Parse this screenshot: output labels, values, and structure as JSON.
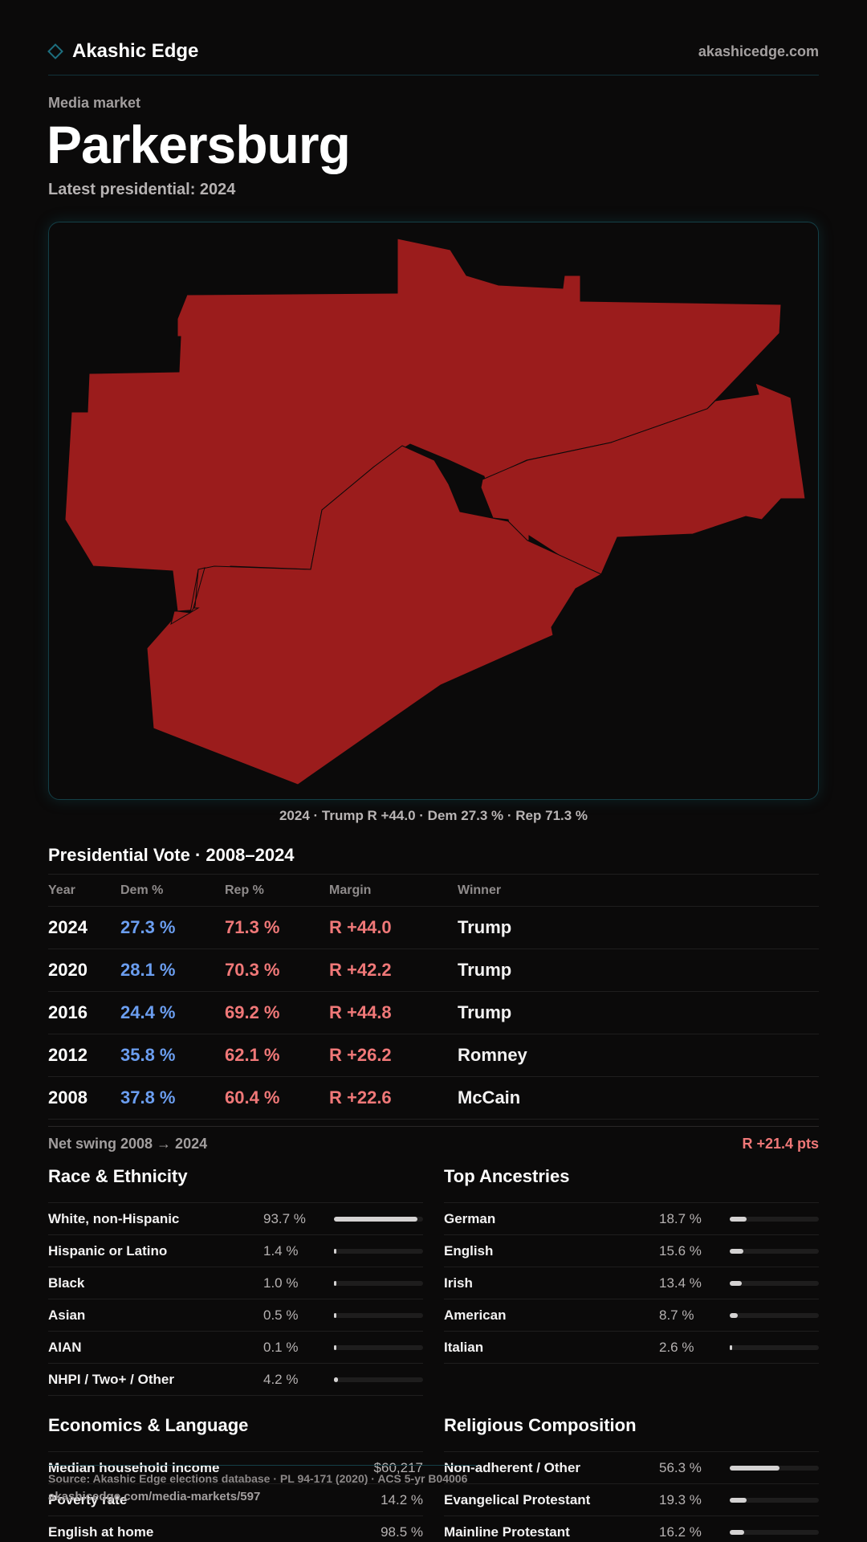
{
  "brand": {
    "name": "Akashic Edge",
    "site": "akashicedge.com"
  },
  "header": {
    "eyebrow": "Media market",
    "title": "Parkersburg",
    "subtitle": "Latest presidential: 2024"
  },
  "map": {
    "fill_color": "#9b1c1c",
    "caption": "2024 · Trump R +44.0 · Dem 27.3 % · Rep 71.3 %"
  },
  "presidential": {
    "heading": "Presidential Vote · 2008–2024",
    "columns": [
      "Year",
      "Dem %",
      "Rep %",
      "Margin",
      "Winner"
    ],
    "rows": [
      {
        "year": "2024",
        "dem": "27.3 %",
        "rep": "71.3 %",
        "margin": "R +44.0",
        "winner": "Trump"
      },
      {
        "year": "2020",
        "dem": "28.1 %",
        "rep": "70.3 %",
        "margin": "R +42.2",
        "winner": "Trump"
      },
      {
        "year": "2016",
        "dem": "24.4 %",
        "rep": "69.2 %",
        "margin": "R +44.8",
        "winner": "Trump"
      },
      {
        "year": "2012",
        "dem": "35.8 %",
        "rep": "62.1 %",
        "margin": "R +26.2",
        "winner": "Romney"
      },
      {
        "year": "2008",
        "dem": "37.8 %",
        "rep": "60.4 %",
        "margin": "R +22.6",
        "winner": "McCain"
      }
    ],
    "swing_label": "Net swing 2008 → 2024",
    "swing_value": "R +21.4 pts"
  },
  "race": {
    "heading": "Race & Ethnicity",
    "rows": [
      {
        "label": "White, non-Hispanic",
        "value": "93.7 %",
        "pct": 93.7
      },
      {
        "label": "Hispanic or Latino",
        "value": "1.4 %",
        "pct": 1.4
      },
      {
        "label": "Black",
        "value": "1.0 %",
        "pct": 1.0
      },
      {
        "label": "Asian",
        "value": "0.5 %",
        "pct": 0.5
      },
      {
        "label": "AIAN",
        "value": "0.1 %",
        "pct": 0.1
      },
      {
        "label": "NHPI / Two+ / Other",
        "value": "4.2 %",
        "pct": 4.2
      }
    ]
  },
  "ancestry": {
    "heading": "Top Ancestries",
    "rows": [
      {
        "label": "German",
        "value": "18.7 %",
        "pct": 18.7
      },
      {
        "label": "English",
        "value": "15.6 %",
        "pct": 15.6
      },
      {
        "label": "Irish",
        "value": "13.4 %",
        "pct": 13.4
      },
      {
        "label": "American",
        "value": "8.7 %",
        "pct": 8.7
      },
      {
        "label": "Italian",
        "value": "2.6 %",
        "pct": 2.6
      }
    ]
  },
  "economics": {
    "heading": "Economics & Language",
    "rows": [
      {
        "label": "Median household income",
        "value": "$60,217"
      },
      {
        "label": "Poverty rate",
        "value": "14.2 %"
      },
      {
        "label": "English at home",
        "value": "98.5 %"
      }
    ]
  },
  "religion": {
    "heading": "Religious Composition",
    "rows": [
      {
        "label": "Non-adherent / Other",
        "value": "56.3 %",
        "pct": 56.3
      },
      {
        "label": "Evangelical Protestant",
        "value": "19.3 %",
        "pct": 19.3
      },
      {
        "label": "Mainline Protestant",
        "value": "16.2 %",
        "pct": 16.2
      }
    ]
  },
  "footer": {
    "source": "Source: Akashic Edge elections database · PL 94-171 (2020) · ACS 5-yr B04006",
    "url": "akashicedge.com/media-markets/597"
  }
}
